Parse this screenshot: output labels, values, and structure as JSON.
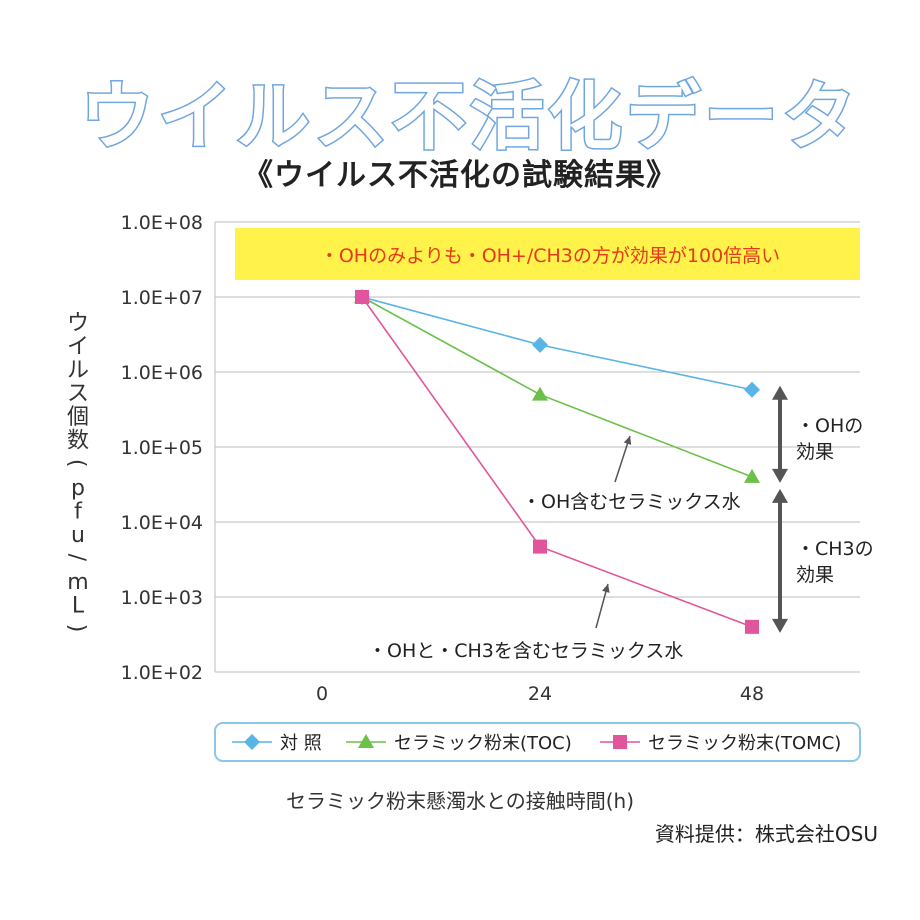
{
  "headline": "ウイルス不活化データ",
  "subtitle": "《ウイルス不活化の試験結果》",
  "credit": "資料提供：株式会社OSU",
  "colors": {
    "control": "#5ab4e6",
    "toc": "#6cc04a",
    "tomc": "#e0559b",
    "highlight": "#fff24a",
    "highlight_text": "#e43a1c",
    "headline_fill": "#ffffff",
    "headline_stroke": "#6fa6df"
  },
  "chart_data": {
    "type": "line",
    "title": "",
    "xlabel": "セラミック粉末懸濁水との接触時間(h)",
    "ylabel": "ウイルス個数(pfu/mL)",
    "yscale": "log",
    "ylim": [
      100,
      100000000
    ],
    "yticks": [
      "1.0E+08",
      "1.0E+07",
      "1.0E+06",
      "1.0E+05",
      "1.0E+04",
      "1.0E+03",
      "1.0E+02"
    ],
    "x": [
      0,
      24,
      48
    ],
    "xticks": [
      "0",
      "24",
      "48"
    ],
    "series": [
      {
        "name": "対 照",
        "marker": "diamond",
        "values": [
          10000000,
          2300000,
          580000
        ]
      },
      {
        "name": "セラミック粉末(TOC)",
        "marker": "triangle",
        "values": [
          10000000,
          500000,
          40000
        ]
      },
      {
        "name": "セラミック粉末(TOMC)",
        "marker": "square",
        "values": [
          10000000,
          4700,
          400
        ]
      }
    ],
    "annotations": {
      "highlight": "・OHのみよりも・OH+/CH3の方が効果が100倍高い",
      "oh_effect": [
        "・OHの",
        "効果"
      ],
      "ch3_effect": [
        "・CH3の",
        "効果"
      ],
      "toc_note": "・OH含むセラミックス水",
      "tomc_note": "・OHと・CH3を含むセラミックス水"
    },
    "grid": true,
    "legend": "bottom"
  }
}
